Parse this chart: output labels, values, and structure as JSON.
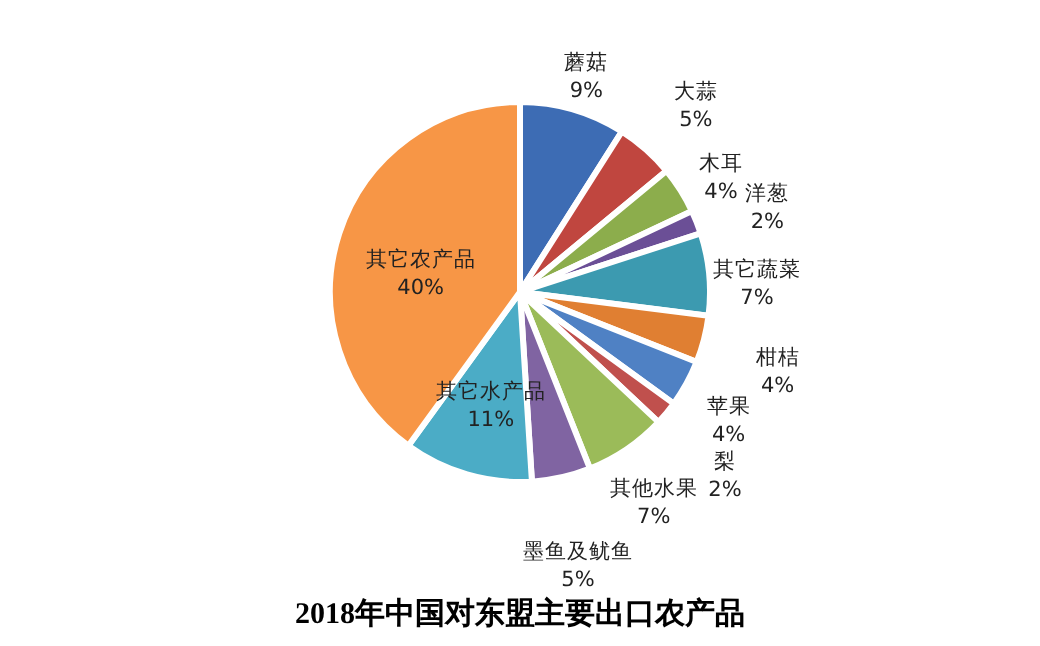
{
  "chart_data": {
    "type": "pie",
    "title": "2018年中国对东盟主要出口农产品",
    "categories": [
      "蘑菇",
      "大蒜",
      "木耳",
      "洋葱",
      "其它蔬菜",
      "柑桔",
      "苹果",
      "梨",
      "其他水果",
      "墨鱼及鱿鱼",
      "其它水产品",
      "其它农产品"
    ],
    "values": [
      9,
      5,
      4,
      2,
      7,
      4,
      4,
      2,
      7,
      5,
      11,
      40
    ],
    "value_labels": [
      "9%",
      "5%",
      "4%",
      "2%",
      "7%",
      "4%",
      "4%",
      "2%",
      "7%",
      "5%",
      "11%",
      "40%"
    ],
    "colors": [
      "#3d6cb4",
      "#c0463f",
      "#8cad4c",
      "#6b4f96",
      "#3c9ab0",
      "#e07f32",
      "#4f81c4",
      "#c0504d",
      "#9bbb59",
      "#8064a2",
      "#4bacc6",
      "#f79646"
    ],
    "legend": false
  }
}
